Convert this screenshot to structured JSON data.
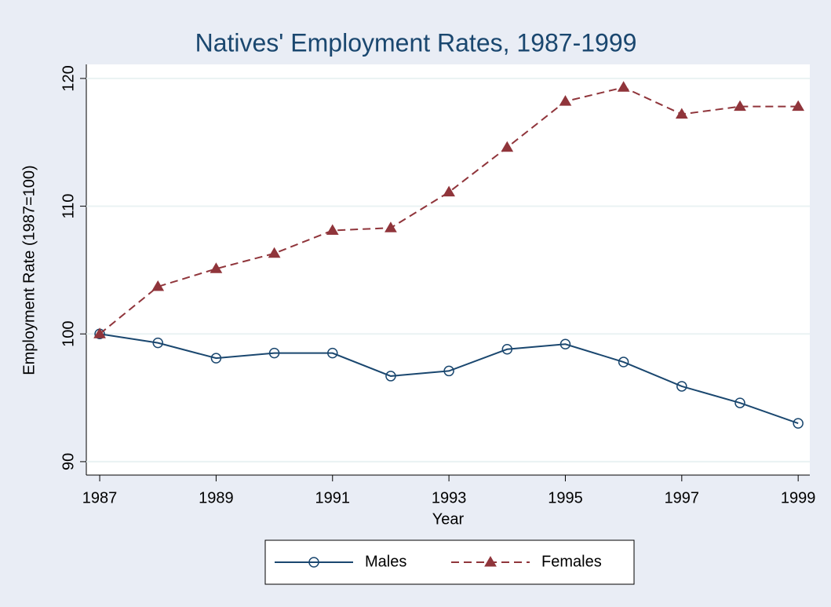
{
  "chart_data": {
    "type": "line",
    "title": "Natives' Employment Rates, 1987-1999",
    "x_label": "Year",
    "y_label": "Employment Rate (1987=100)",
    "x": [
      1987,
      1988,
      1989,
      1990,
      1991,
      1992,
      1993,
      1994,
      1995,
      1996,
      1997,
      1998,
      1999
    ],
    "series": [
      {
        "name": "Males",
        "color": "#1a476f",
        "marker": "circle",
        "dash": "solid",
        "values": [
          100,
          99.3,
          98.1,
          98.5,
          98.5,
          96.7,
          97.1,
          98.8,
          99.2,
          97.8,
          95.9,
          94.6,
          93.0
        ]
      },
      {
        "name": "Females",
        "color": "#90353b",
        "marker": "triangle",
        "dash": "dashed",
        "values": [
          100,
          103.7,
          105.1,
          106.3,
          108.1,
          108.3,
          111.1,
          114.6,
          118.2,
          119.3,
          117.2,
          117.8,
          117.8
        ]
      }
    ],
    "xlim": [
      1986.77,
      1999.2
    ],
    "ylim": [
      88.95,
      121.1
    ],
    "xticks": [
      1987,
      1989,
      1991,
      1993,
      1995,
      1997,
      1999
    ],
    "yticks": [
      90,
      100,
      110,
      120
    ],
    "grid": true,
    "legend": "bottom"
  }
}
